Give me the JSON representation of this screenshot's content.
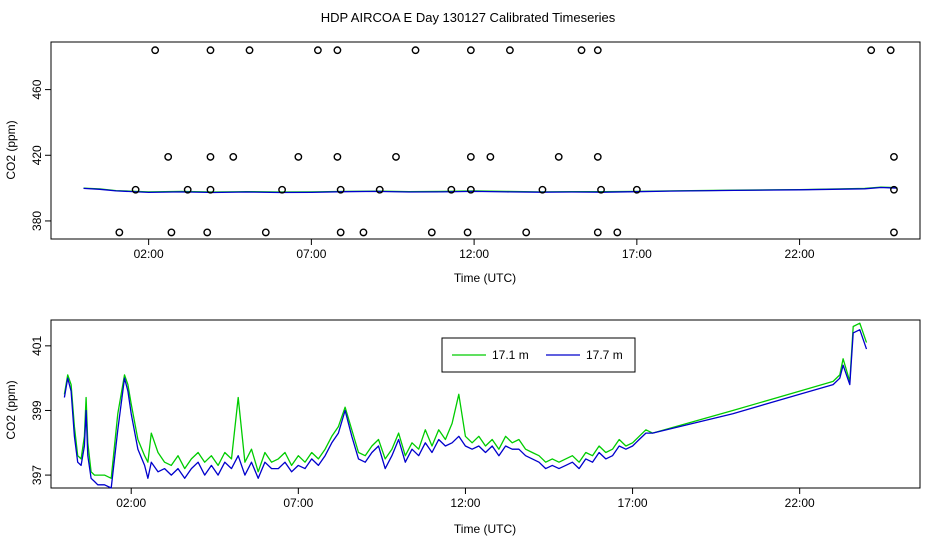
{
  "title": "HDP AIRCOA E  Day 130127  Calibrated Timeseries",
  "chart_data": [
    {
      "type": "scatter",
      "xlabel": "Time (UTC)",
      "ylabel": "CO2 (ppm)",
      "xlim": [
        -1.0,
        25.7
      ],
      "ylim": [
        369,
        489
      ],
      "xticks": [
        2,
        7,
        12,
        17,
        22
      ],
      "xtick_labels": [
        "02:00",
        "07:00",
        "12:00",
        "17:00",
        "22:00"
      ],
      "yticks": [
        380,
        420,
        460
      ],
      "ytick_labels": [
        "380",
        "420",
        "460"
      ],
      "marker_color": "#000000",
      "points": [
        {
          "x": 1.1,
          "y": 373
        },
        {
          "x": 2.7,
          "y": 373
        },
        {
          "x": 3.8,
          "y": 373
        },
        {
          "x": 5.6,
          "y": 373
        },
        {
          "x": 7.9,
          "y": 373
        },
        {
          "x": 8.6,
          "y": 373
        },
        {
          "x": 10.7,
          "y": 373
        },
        {
          "x": 11.8,
          "y": 373
        },
        {
          "x": 13.6,
          "y": 373
        },
        {
          "x": 15.8,
          "y": 373
        },
        {
          "x": 16.4,
          "y": 373
        },
        {
          "x": 24.9,
          "y": 373
        },
        {
          "x": 1.6,
          "y": 399
        },
        {
          "x": 3.2,
          "y": 399
        },
        {
          "x": 3.9,
          "y": 399
        },
        {
          "x": 6.1,
          "y": 399
        },
        {
          "x": 7.9,
          "y": 399
        },
        {
          "x": 9.1,
          "y": 399
        },
        {
          "x": 11.3,
          "y": 399
        },
        {
          "x": 11.9,
          "y": 399
        },
        {
          "x": 14.1,
          "y": 399
        },
        {
          "x": 15.9,
          "y": 399
        },
        {
          "x": 17.0,
          "y": 399
        },
        {
          "x": 24.9,
          "y": 399
        },
        {
          "x": 2.6,
          "y": 419
        },
        {
          "x": 3.9,
          "y": 419
        },
        {
          "x": 4.6,
          "y": 419
        },
        {
          "x": 6.6,
          "y": 419
        },
        {
          "x": 7.8,
          "y": 419
        },
        {
          "x": 9.6,
          "y": 419
        },
        {
          "x": 11.9,
          "y": 419
        },
        {
          "x": 12.5,
          "y": 419
        },
        {
          "x": 14.6,
          "y": 419
        },
        {
          "x": 15.8,
          "y": 419
        },
        {
          "x": 24.9,
          "y": 419
        },
        {
          "x": 2.2,
          "y": 484
        },
        {
          "x": 3.9,
          "y": 484
        },
        {
          "x": 5.1,
          "y": 484
        },
        {
          "x": 7.2,
          "y": 484
        },
        {
          "x": 7.8,
          "y": 484
        },
        {
          "x": 10.2,
          "y": 484
        },
        {
          "x": 11.9,
          "y": 484
        },
        {
          "x": 13.1,
          "y": 484
        },
        {
          "x": 15.3,
          "y": 484
        },
        {
          "x": 15.8,
          "y": 484
        },
        {
          "x": 24.2,
          "y": 484
        },
        {
          "x": 24.8,
          "y": 484
        }
      ],
      "series": [
        {
          "name": "17.1 m",
          "color": "#00cc00",
          "x": [
            0.0,
            0.5,
            1.0,
            2.0,
            3.0,
            4.0,
            5.0,
            6.0,
            7.0,
            8.0,
            9.0,
            10.0,
            11.0,
            12.0,
            13.0,
            14.0,
            15.0,
            16.0,
            17.0,
            18.0,
            20.0,
            22.0,
            24.0,
            24.5,
            25.0
          ],
          "y": [
            400,
            399.5,
            398.5,
            397.7,
            398,
            397.6,
            397.9,
            397.6,
            397.7,
            398,
            398.2,
            397.9,
            398,
            398.3,
            398,
            397.7,
            397.9,
            397.8,
            398,
            398.3,
            398.7,
            399.1,
            399.8,
            400.6,
            400.3
          ]
        },
        {
          "name": "17.7 m",
          "color": "#0000cc",
          "x": [
            0.0,
            0.5,
            1.0,
            2.0,
            3.0,
            4.0,
            5.0,
            6.0,
            7.0,
            8.0,
            9.0,
            10.0,
            11.0,
            12.0,
            13.0,
            14.0,
            15.0,
            16.0,
            17.0,
            18.0,
            20.0,
            22.0,
            24.0,
            24.5,
            25.0
          ],
          "y": [
            399.8,
            399.3,
            398.3,
            397.4,
            397.7,
            397.3,
            397.6,
            397.3,
            397.4,
            397.8,
            398,
            397.6,
            397.7,
            398,
            397.7,
            397.5,
            397.6,
            397.5,
            397.8,
            398.2,
            398.6,
            399,
            399.6,
            400.4,
            400
          ]
        }
      ]
    },
    {
      "type": "line",
      "xlabel": "Time (UTC)",
      "ylabel": "CO2 (ppm)",
      "xlim": [
        -0.4,
        25.6
      ],
      "ylim": [
        396.6,
        401.8
      ],
      "xticks": [
        2,
        7,
        12,
        17,
        22
      ],
      "xtick_labels": [
        "02:00",
        "07:00",
        "12:00",
        "17:00",
        "22:00"
      ],
      "yticks": [
        397,
        399,
        401
      ],
      "ytick_labels": [
        "397",
        "399",
        "401"
      ],
      "legend": {
        "placement": "top-center"
      },
      "series": [
        {
          "name": "17.1 m",
          "color": "#00cc00",
          "x": [
            0.0,
            0.1,
            0.2,
            0.3,
            0.4,
            0.5,
            0.6,
            0.65,
            0.7,
            0.8,
            0.9,
            1.0,
            1.2,
            1.4,
            1.6,
            1.8,
            1.9,
            2.0,
            2.2,
            2.4,
            2.5,
            2.6,
            2.8,
            3.0,
            3.2,
            3.4,
            3.6,
            3.8,
            4.0,
            4.2,
            4.4,
            4.6,
            4.8,
            5.0,
            5.2,
            5.4,
            5.6,
            5.8,
            6.0,
            6.2,
            6.4,
            6.6,
            6.8,
            7.0,
            7.2,
            7.4,
            7.6,
            7.8,
            8.0,
            8.2,
            8.4,
            8.6,
            8.8,
            9.0,
            9.2,
            9.4,
            9.6,
            9.8,
            10.0,
            10.2,
            10.4,
            10.6,
            10.8,
            11.0,
            11.2,
            11.4,
            11.6,
            11.8,
            12.0,
            12.2,
            12.4,
            12.6,
            12.8,
            13.0,
            13.2,
            13.4,
            13.6,
            13.8,
            14.0,
            14.2,
            14.4,
            14.6,
            14.8,
            15.0,
            15.2,
            15.4,
            15.6,
            15.8,
            16.0,
            16.2,
            16.4,
            16.6,
            16.8,
            17.0,
            17.2,
            17.4,
            17.6,
            20.0,
            22.0,
            23.0,
            23.2,
            23.3,
            23.5,
            23.6,
            23.8,
            24.0
          ],
          "y": [
            399.5,
            400.1,
            399.8,
            398.5,
            397.6,
            397.5,
            398.2,
            399.4,
            398.0,
            397.1,
            397.0,
            397.0,
            397.0,
            396.9,
            398.9,
            400.1,
            399.8,
            399.2,
            398.1,
            397.6,
            397.4,
            398.3,
            397.7,
            397.4,
            397.3,
            397.6,
            397.2,
            397.5,
            397.7,
            397.4,
            397.6,
            397.3,
            397.7,
            397.5,
            399.4,
            397.4,
            397.8,
            397.1,
            397.7,
            397.4,
            397.5,
            397.7,
            397.3,
            397.6,
            397.4,
            397.7,
            397.5,
            397.8,
            398.2,
            398.5,
            399.1,
            398.4,
            397.7,
            397.6,
            397.9,
            398.1,
            397.5,
            397.8,
            398.3,
            397.6,
            398.0,
            397.8,
            398.4,
            397.9,
            398.4,
            398.1,
            398.6,
            399.5,
            398.2,
            398.0,
            398.2,
            397.9,
            398.1,
            397.8,
            398.2,
            398.0,
            398.1,
            397.8,
            397.7,
            397.6,
            397.4,
            397.5,
            397.4,
            397.5,
            397.6,
            397.4,
            397.7,
            397.6,
            397.9,
            397.7,
            397.8,
            398.1,
            397.9,
            398.0,
            398.2,
            398.4,
            398.3,
            399.0,
            399.6,
            399.9,
            400.1,
            400.6,
            399.9,
            401.6,
            401.7,
            401.1
          ]
        },
        {
          "name": "17.7 m",
          "color": "#0000cc",
          "x": [
            0.0,
            0.1,
            0.2,
            0.3,
            0.4,
            0.5,
            0.6,
            0.65,
            0.7,
            0.8,
            0.9,
            1.0,
            1.2,
            1.4,
            1.6,
            1.8,
            1.9,
            2.0,
            2.2,
            2.4,
            2.5,
            2.6,
            2.8,
            3.0,
            3.2,
            3.4,
            3.6,
            3.8,
            4.0,
            4.2,
            4.4,
            4.6,
            4.8,
            5.0,
            5.2,
            5.4,
            5.6,
            5.8,
            6.0,
            6.2,
            6.4,
            6.6,
            6.8,
            7.0,
            7.2,
            7.4,
            7.6,
            7.8,
            8.0,
            8.2,
            8.4,
            8.6,
            8.8,
            9.0,
            9.2,
            9.4,
            9.6,
            9.8,
            10.0,
            10.2,
            10.4,
            10.6,
            10.8,
            11.0,
            11.2,
            11.4,
            11.6,
            11.8,
            12.0,
            12.2,
            12.4,
            12.6,
            12.8,
            13.0,
            13.2,
            13.4,
            13.6,
            13.8,
            14.0,
            14.2,
            14.4,
            14.6,
            14.8,
            15.0,
            15.2,
            15.4,
            15.6,
            15.8,
            16.0,
            16.2,
            16.4,
            16.6,
            16.8,
            17.0,
            17.2,
            17.4,
            17.6,
            20.0,
            22.0,
            23.0,
            23.2,
            23.3,
            23.5,
            23.6,
            23.8,
            24.0
          ],
          "y": [
            399.4,
            400.0,
            399.6,
            398.2,
            397.4,
            397.3,
            397.9,
            399.0,
            397.6,
            396.9,
            396.8,
            396.7,
            396.7,
            396.6,
            398.4,
            400.0,
            399.6,
            398.9,
            397.8,
            397.3,
            396.9,
            397.4,
            397.1,
            397.2,
            397.0,
            397.2,
            396.9,
            397.2,
            397.4,
            397.0,
            397.3,
            397.0,
            397.4,
            397.2,
            397.6,
            397.0,
            397.4,
            396.9,
            397.4,
            397.2,
            397.2,
            397.4,
            397.1,
            397.3,
            397.2,
            397.5,
            397.3,
            397.6,
            398.0,
            398.3,
            399.0,
            398.2,
            397.5,
            397.4,
            397.7,
            397.9,
            397.2,
            397.6,
            398.1,
            397.4,
            397.8,
            397.6,
            398.0,
            397.7,
            398.1,
            397.9,
            398.0,
            398.2,
            397.9,
            397.8,
            397.9,
            397.7,
            397.9,
            397.6,
            397.9,
            397.8,
            397.8,
            397.6,
            397.5,
            397.4,
            397.2,
            397.3,
            397.2,
            397.3,
            397.4,
            397.2,
            397.5,
            397.4,
            397.7,
            397.5,
            397.6,
            397.9,
            397.8,
            397.9,
            398.1,
            398.3,
            398.3,
            398.9,
            399.5,
            399.8,
            400.0,
            400.4,
            399.8,
            401.4,
            401.5,
            400.9
          ]
        }
      ]
    }
  ]
}
